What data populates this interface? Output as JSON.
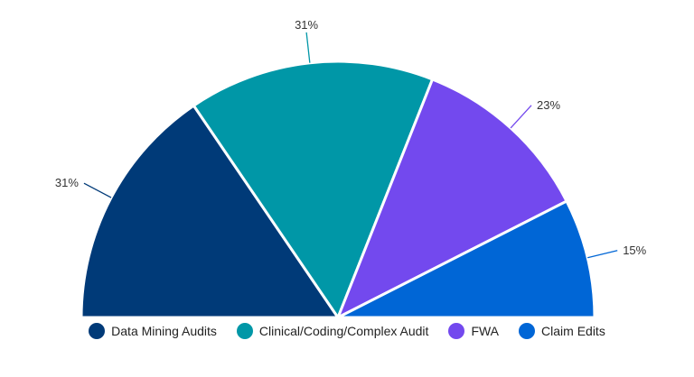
{
  "chart_data": {
    "type": "pie",
    "variant": "semi-circle",
    "title": "",
    "legend_position": "bottom",
    "slices": [
      {
        "name": "Data Mining Audits",
        "value": 31,
        "label": "31%",
        "color": "#003a78"
      },
      {
        "name": "Clinical/Coding/Complex Audit",
        "value": 31,
        "label": "31%",
        "color": "#0097a7"
      },
      {
        "name": "FWA",
        "value": 23,
        "label": "23%",
        "color": "#7349ee"
      },
      {
        "name": "Claim Edits",
        "value": 15,
        "label": "15%",
        "color": "#0066d6"
      }
    ]
  }
}
